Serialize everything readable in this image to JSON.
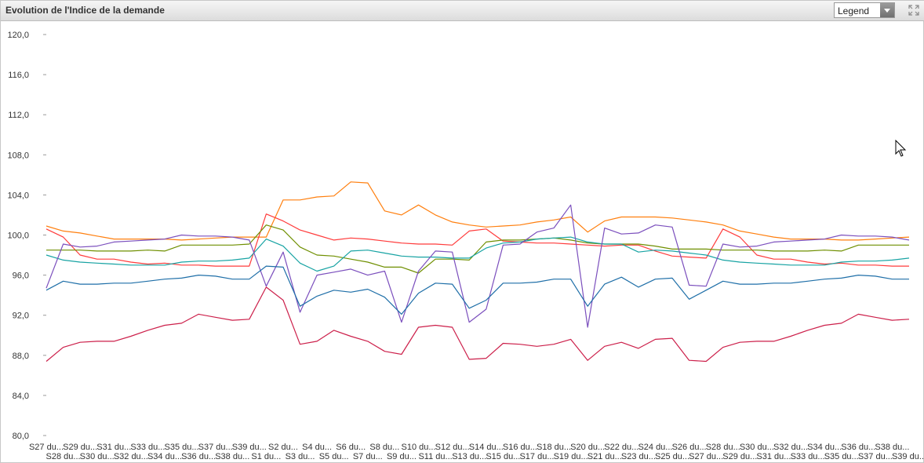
{
  "header": {
    "title": "Evolution de l'Indice de la demande",
    "legend_label": "Legend"
  },
  "icons": {
    "expand": "expand-icon",
    "dropdown": "chevron-down-icon"
  },
  "chart_data": {
    "type": "line",
    "title": "Evolution de l'Indice de la demande",
    "xlabel": "",
    "ylabel": "",
    "ylim": [
      80,
      120
    ],
    "yticks": [
      80,
      84,
      88,
      92,
      96,
      100,
      104,
      108,
      112,
      116,
      120
    ],
    "ytick_labels": [
      "80,0",
      "84,0",
      "88,0",
      "92,0",
      "96,0",
      "100,0",
      "104,0",
      "108,0",
      "112,0",
      "116,0",
      "120,0"
    ],
    "grid": false,
    "legend": "hidden",
    "categories": [
      "S27 du…",
      "S28 du…",
      "S29 du…",
      "S30 du…",
      "S31 du…",
      "S32 du…",
      "S33 du…",
      "S34 du…",
      "S35 du…",
      "S36 du…",
      "S37 du…",
      "S38 du…",
      "S39 du…",
      "S1 du…",
      "S2 du…",
      "S3 du…",
      "S4 du…",
      "S5 du…",
      "S6 du…",
      "S7 du…",
      "S8 du…",
      "S9 du…",
      "S10 du…",
      "S11 du…",
      "S12 du…",
      "S13 du…",
      "S14 du…",
      "S15 du…",
      "S16 du…",
      "S17 du…",
      "S18 du…",
      "S19 du…",
      "S20 du…",
      "S21 du…",
      "S22 du…",
      "S23 du…",
      "S24 du…",
      "S25 du…",
      "S26 du…",
      "S27 du…",
      "S28 du…",
      "S29 du…",
      "S30 du…",
      "S31 du…",
      "S32 du…",
      "S33 du…",
      "S34 du…",
      "S35 du…",
      "S36 du…",
      "S37 du…",
      "S38 du…",
      "S39 du…"
    ],
    "tick_labels_top": [
      "S27 du...",
      "S29 du...",
      "S31 du...",
      "S33 du...",
      "S35 du...",
      "S37 du...",
      "S39 du...",
      "S2 du...",
      "S4 du...",
      "S6 du...",
      "S8 du...",
      "S10 du...",
      "S12 du...",
      "S14 du...",
      "S16 du...",
      "S18 du...",
      "S20 du...",
      "S22 du...",
      "S24 du...",
      "S26 du...",
      "S28 du...",
      "S30 du...",
      "S32 du...",
      "S34 du...",
      "S36 du...",
      "S38 du..."
    ],
    "tick_labels_bottom": [
      "S28 du...",
      "S30 du...",
      "S32 du...",
      "S34 du...",
      "S36 du...",
      "S38 du...",
      "S1 du...",
      "S3 du...",
      "S5 du...",
      "S7 du...",
      "S9 du...",
      "S11 du...",
      "S13 du...",
      "S15 du...",
      "S17 du...",
      "S19 du...",
      "S21 du...",
      "S23 du...",
      "S25 du...",
      "S27 du...",
      "S29 du...",
      "S31 du...",
      "S33 du...",
      "S35 du...",
      "S37 du...",
      "S39 du..."
    ],
    "series": [
      {
        "color": "#ff7f0e",
        "values": [
          100.9,
          100.4,
          100.2,
          99.9,
          99.6,
          99.6,
          99.6,
          99.6,
          99.5,
          99.6,
          99.7,
          99.8,
          99.8,
          99.8,
          103.5,
          103.5,
          103.8,
          103.9,
          105.3,
          105.2,
          102.4,
          102.0,
          103.0,
          102.0,
          101.3,
          101.0,
          100.8,
          100.9,
          101.0,
          101.3,
          101.5,
          101.8,
          100.3,
          101.4,
          101.8,
          101.8,
          101.8,
          101.7,
          101.5,
          101.3,
          101.0,
          100.4,
          100.1,
          99.8,
          99.6,
          99.6,
          99.6,
          99.5,
          99.5,
          99.6,
          99.7,
          99.8
        ]
      },
      {
        "color": "#ff3b3b",
        "values": [
          100.6,
          99.8,
          98.0,
          97.6,
          97.6,
          97.3,
          97.1,
          97.2,
          97.0,
          97.0,
          96.9,
          96.9,
          96.9,
          102.1,
          101.4,
          100.5,
          100.0,
          99.5,
          99.7,
          99.6,
          99.4,
          99.2,
          99.1,
          99.1,
          99.0,
          100.4,
          100.6,
          99.4,
          99.3,
          99.2,
          99.2,
          99.1,
          99.0,
          98.9,
          99.0,
          99.0,
          98.4,
          97.9,
          97.8,
          97.7,
          100.6,
          99.8,
          98.0,
          97.6,
          97.6,
          97.3,
          97.1,
          97.2,
          97.0,
          97.0,
          96.9,
          96.9
        ]
      },
      {
        "color": "#6f8f00",
        "values": [
          98.5,
          98.5,
          98.5,
          98.4,
          98.4,
          98.4,
          98.5,
          98.4,
          99.0,
          99.0,
          99.0,
          99.0,
          99.1,
          101.0,
          100.5,
          98.8,
          98.0,
          97.9,
          97.6,
          97.3,
          96.8,
          96.8,
          96.2,
          97.6,
          97.6,
          97.5,
          99.3,
          99.5,
          99.5,
          99.6,
          99.7,
          99.5,
          99.2,
          99.1,
          99.1,
          99.1,
          98.9,
          98.6,
          98.6,
          98.6,
          98.5,
          98.5,
          98.5,
          98.4,
          98.4,
          98.4,
          98.5,
          98.4,
          99.0,
          99.0,
          99.0,
          99.0
        ]
      },
      {
        "color": "#17a3a3",
        "values": [
          98.0,
          97.5,
          97.3,
          97.2,
          97.1,
          97.0,
          97.0,
          97.0,
          97.3,
          97.4,
          97.4,
          97.5,
          97.7,
          99.6,
          98.9,
          97.2,
          96.4,
          96.9,
          98.4,
          98.5,
          98.2,
          97.9,
          97.8,
          97.8,
          97.7,
          97.7,
          98.7,
          99.2,
          99.3,
          99.6,
          99.7,
          99.8,
          99.3,
          99.1,
          99.1,
          98.3,
          98.5,
          98.4,
          98.2,
          98.0,
          97.5,
          97.3,
          97.2,
          97.1,
          97.0,
          97.0,
          97.0,
          97.3,
          97.4,
          97.4,
          97.5,
          97.7
        ]
      },
      {
        "color": "#7b4fbd",
        "values": [
          94.7,
          99.1,
          98.8,
          98.9,
          99.3,
          99.4,
          99.5,
          99.6,
          100.0,
          99.9,
          99.9,
          99.8,
          99.5,
          94.9,
          98.3,
          92.3,
          96.0,
          96.3,
          96.6,
          96.0,
          96.4,
          91.3,
          96.4,
          98.4,
          98.3,
          91.3,
          92.6,
          99.0,
          99.1,
          100.3,
          100.7,
          103.0,
          90.8,
          100.7,
          100.1,
          100.2,
          101.0,
          100.8,
          95.0,
          94.9,
          99.1,
          98.8,
          98.9,
          99.3,
          99.4,
          99.5,
          99.6,
          100.0,
          99.9,
          99.9,
          99.8,
          99.5
        ]
      },
      {
        "color": "#1f6fa8",
        "values": [
          94.5,
          95.4,
          95.1,
          95.1,
          95.2,
          95.2,
          95.4,
          95.6,
          95.7,
          96.0,
          95.9,
          95.6,
          95.6,
          96.9,
          96.8,
          92.9,
          93.9,
          94.5,
          94.3,
          94.6,
          93.8,
          92.1,
          94.2,
          95.2,
          95.1,
          92.7,
          93.5,
          95.2,
          95.2,
          95.3,
          95.6,
          95.6,
          92.9,
          95.1,
          95.8,
          94.8,
          95.6,
          95.7,
          93.6,
          94.5,
          95.4,
          95.1,
          95.1,
          95.2,
          95.2,
          95.4,
          95.6,
          95.7,
          96.0,
          95.9,
          95.6,
          95.6
        ]
      },
      {
        "color": "#cc1f4a",
        "values": [
          87.4,
          88.8,
          89.3,
          89.4,
          89.4,
          89.9,
          90.5,
          91.0,
          91.2,
          92.1,
          91.8,
          91.5,
          91.6,
          94.8,
          93.5,
          89.1,
          89.4,
          90.5,
          89.9,
          89.4,
          88.4,
          88.1,
          90.8,
          91.0,
          90.8,
          87.6,
          87.7,
          89.2,
          89.1,
          88.9,
          89.1,
          89.6,
          87.5,
          88.9,
          89.3,
          88.7,
          89.6,
          89.7,
          87.5,
          87.4,
          88.8,
          89.3,
          89.4,
          89.4,
          89.9,
          90.5,
          91.0,
          91.2,
          92.1,
          91.8,
          91.5,
          91.6
        ]
      }
    ]
  }
}
